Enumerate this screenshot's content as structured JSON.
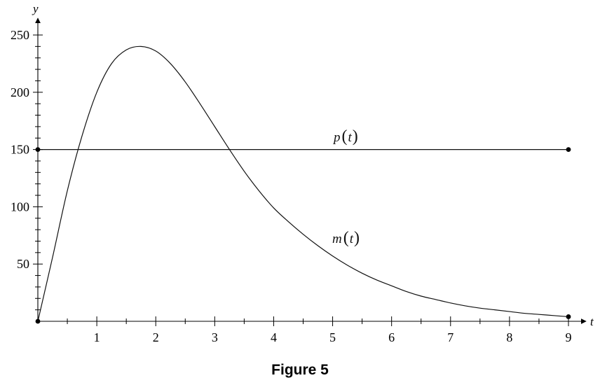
{
  "figure": {
    "caption": "Figure 5"
  },
  "chart_data": {
    "type": "line",
    "xlabel": "t",
    "ylabel": "y",
    "xlim": [
      0,
      9
    ],
    "ylim": [
      0,
      250
    ],
    "grid": false,
    "x_ticks": [
      1,
      2,
      3,
      4,
      5,
      6,
      7,
      8,
      9
    ],
    "x_tick_labels": [
      "1",
      "2",
      "3",
      "4",
      "5",
      "6",
      "7",
      "8",
      "9"
    ],
    "y_ticks": [
      50,
      100,
      150,
      200,
      250
    ],
    "y_tick_labels": [
      "50",
      "100",
      "150",
      "200",
      "250"
    ],
    "series": [
      {
        "name": "p(t)",
        "label_fn": "p",
        "label_arg": "t",
        "color": "#111111",
        "x": [
          0,
          9
        ],
        "y": [
          150,
          150
        ],
        "endpoints": true
      },
      {
        "name": "m(t)",
        "label_fn": "m",
        "label_arg": "t",
        "color": "#111111",
        "x": [
          0,
          0.25,
          0.5,
          0.75,
          1,
          1.25,
          1.5,
          1.75,
          2,
          2.25,
          2.5,
          2.75,
          3,
          3.25,
          3.5,
          3.75,
          4,
          4.25,
          4.5,
          4.75,
          5,
          5.25,
          5.5,
          5.75,
          6,
          6.25,
          6.5,
          6.75,
          7,
          7.25,
          7.5,
          7.75,
          8,
          8.25,
          8.5,
          8.75,
          9
        ],
        "y": [
          0,
          56,
          114,
          162,
          200,
          225,
          237,
          240,
          236,
          225,
          209,
          190,
          170,
          150,
          131,
          114,
          99,
          87,
          76,
          66,
          57,
          49,
          42,
          36,
          31,
          26,
          22,
          19,
          16,
          13.5,
          11.5,
          10,
          8.5,
          7,
          6,
          5,
          4
        ],
        "endpoints": true
      }
    ]
  }
}
